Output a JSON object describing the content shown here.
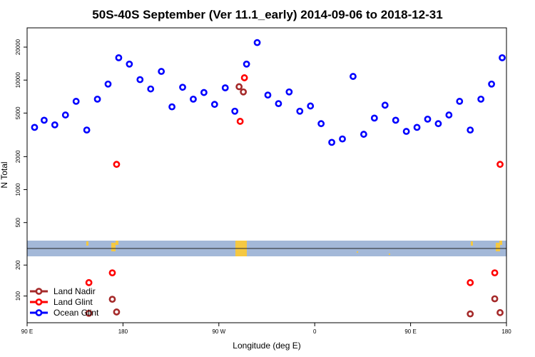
{
  "chart_data": {
    "type": "scatter",
    "title": "50S-40S September (Ver 11.1_early)   2014-09-06 to 2018-12-31",
    "xlabel": "Longitude (deg E)",
    "ylabel": "N Total",
    "x_ticks": [
      {
        "label": "90 E",
        "value": 0
      },
      {
        "label": "180",
        "value": 90
      },
      {
        "label": "90 W",
        "value": 180
      },
      {
        "label": "0",
        "value": 270
      },
      {
        "label": "90 E",
        "value": 360
      },
      {
        "label": "180",
        "value": 450
      }
    ],
    "y_ticks": [
      {
        "label": "100",
        "value": 100
      },
      {
        "label": "200",
        "value": 200
      },
      {
        "label": "500",
        "value": 500
      },
      {
        "label": "1000",
        "value": 1000
      },
      {
        "label": "2000",
        "value": 2000
      },
      {
        "label": "5000",
        "value": 5000
      },
      {
        "label": "10000",
        "value": 10000
      },
      {
        "label": "20000",
        "value": 20000
      }
    ],
    "xlim": [
      0,
      450
    ],
    "ylim_lower": [
      55,
      290
    ],
    "ylim_upper": [
      290,
      30000
    ],
    "colors": {
      "land_nadir": "#a52a2a",
      "land_glint": "#ff0000",
      "ocean_glint": "#0000ff",
      "map_band": "#a3b8d8",
      "land_shape": "#f5c842"
    },
    "legend": {
      "position": "bottom-left",
      "entries": [
        {
          "name": "Land Nadir",
          "color": "#a52a2a"
        },
        {
          "name": "Land Glint",
          "color": "#ff0000"
        },
        {
          "name": "Ocean Glint",
          "color": "#0000ff"
        }
      ]
    },
    "series": [
      {
        "name": "Ocean Glint",
        "color": "#0000ff",
        "points": [
          [
            7,
            3700
          ],
          [
            16,
            4300
          ],
          [
            26,
            3900
          ],
          [
            36,
            4800
          ],
          [
            46,
            6400
          ],
          [
            56,
            3500
          ],
          [
            66,
            6700
          ],
          [
            76,
            9200
          ],
          [
            86,
            16000
          ],
          [
            96,
            14000
          ],
          [
            106,
            10100
          ],
          [
            116,
            8300
          ],
          [
            126,
            12000
          ],
          [
            136,
            5700
          ],
          [
            146,
            8600
          ],
          [
            156,
            6700
          ],
          [
            166,
            7700
          ],
          [
            176,
            6000
          ],
          [
            186,
            8500
          ],
          [
            195,
            5200
          ],
          [
            206,
            14000
          ],
          [
            216,
            22000
          ],
          [
            226,
            7300
          ],
          [
            236,
            6100
          ],
          [
            246,
            7800
          ],
          [
            256,
            5200
          ],
          [
            266,
            5800
          ],
          [
            276,
            4000
          ],
          [
            286,
            2700
          ],
          [
            296,
            2900
          ],
          [
            306,
            10800
          ],
          [
            316,
            3200
          ],
          [
            326,
            4500
          ],
          [
            336,
            5900
          ],
          [
            346,
            4300
          ],
          [
            356,
            3400
          ],
          [
            366,
            3700
          ],
          [
            376,
            4400
          ],
          [
            386,
            4000
          ],
          [
            396,
            4800
          ],
          [
            406,
            6400
          ],
          [
            416,
            3500
          ],
          [
            426,
            6700
          ],
          [
            436,
            9200
          ],
          [
            446,
            16000
          ]
        ]
      },
      {
        "name": "Land Glint",
        "color": "#ff0000",
        "points": [
          [
            84,
            1700
          ],
          [
            200,
            4200
          ],
          [
            204,
            10500
          ],
          [
            444,
            1700
          ],
          [
            58,
            135
          ],
          [
            80,
            168
          ],
          [
            416,
            135
          ],
          [
            439,
            168
          ]
        ]
      },
      {
        "name": "Land Nadir",
        "color": "#a52a2a",
        "points": [
          [
            199,
            8700
          ],
          [
            203,
            7800
          ],
          [
            58,
            68
          ],
          [
            80,
            93
          ],
          [
            84,
            70
          ],
          [
            416,
            67
          ],
          [
            439,
            94
          ],
          [
            444,
            69
          ]
        ]
      }
    ]
  }
}
